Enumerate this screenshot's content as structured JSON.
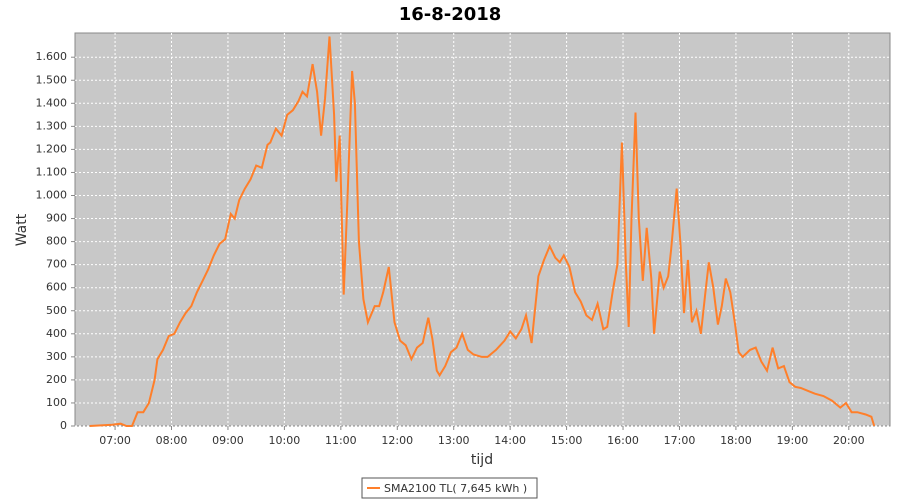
{
  "chart_data": {
    "type": "line",
    "title": "16-8-2018",
    "x_label": "tijd",
    "y_label": "Watt",
    "x": [
      6.55,
      6.95,
      7.1,
      7.2,
      7.3,
      7.4,
      7.5,
      7.6,
      7.7,
      7.75,
      7.85,
      7.95,
      8.05,
      8.15,
      8.25,
      8.35,
      8.45,
      8.55,
      8.65,
      8.75,
      8.85,
      8.95,
      9.05,
      9.12,
      9.2,
      9.3,
      9.4,
      9.5,
      9.6,
      9.7,
      9.75,
      9.85,
      9.95,
      10.05,
      10.15,
      10.25,
      10.32,
      10.4,
      10.5,
      10.58,
      10.65,
      10.72,
      10.8,
      10.88,
      10.92,
      10.98,
      11.05,
      11.12,
      11.2,
      11.25,
      11.32,
      11.4,
      11.48,
      11.6,
      11.68,
      11.75,
      11.85,
      11.95,
      12.05,
      12.15,
      12.25,
      12.35,
      12.45,
      12.55,
      12.62,
      12.7,
      12.75,
      12.85,
      12.95,
      13.05,
      13.15,
      13.25,
      13.35,
      13.5,
      13.6,
      13.75,
      13.9,
      14.0,
      14.1,
      14.2,
      14.28,
      14.38,
      14.5,
      14.6,
      14.7,
      14.8,
      14.88,
      14.95,
      15.05,
      15.15,
      15.25,
      15.35,
      15.45,
      15.55,
      15.65,
      15.72,
      15.82,
      15.9,
      15.98,
      16.05,
      16.1,
      16.15,
      16.22,
      16.28,
      16.35,
      16.42,
      16.5,
      16.55,
      16.65,
      16.72,
      16.8,
      16.85,
      16.95,
      17.02,
      17.08,
      17.15,
      17.22,
      17.3,
      17.38,
      17.45,
      17.52,
      17.6,
      17.68,
      17.75,
      17.82,
      17.9,
      17.98,
      18.05,
      18.12,
      18.25,
      18.35,
      18.45,
      18.55,
      18.65,
      18.75,
      18.85,
      18.95,
      19.05,
      19.15,
      19.3,
      19.4,
      19.55,
      19.7,
      19.85,
      19.95,
      20.05,
      20.15,
      20.3,
      20.4,
      20.45
    ],
    "series": [
      {
        "name": "SMA2100 TL( 7,645 kWh )",
        "color": "#ff7f2a",
        "values": [
          0,
          5,
          10,
          0,
          0,
          60,
          60,
          100,
          200,
          290,
          330,
          390,
          400,
          450,
          490,
          520,
          580,
          630,
          680,
          740,
          790,
          810,
          920,
          900,
          980,
          1030,
          1070,
          1130,
          1120,
          1220,
          1230,
          1290,
          1260,
          1350,
          1370,
          1410,
          1450,
          1430,
          1570,
          1450,
          1260,
          1420,
          1690,
          1350,
          1060,
          1260,
          570,
          1000,
          1540,
          1400,
          800,
          550,
          450,
          520,
          520,
          580,
          690,
          450,
          370,
          350,
          290,
          340,
          360,
          470,
          380,
          240,
          220,
          260,
          320,
          340,
          400,
          330,
          310,
          300,
          300,
          330,
          370,
          410,
          380,
          420,
          480,
          360,
          650,
          720,
          780,
          730,
          710,
          740,
          690,
          580,
          540,
          480,
          460,
          530,
          420,
          430,
          590,
          700,
          1230,
          700,
          430,
          900,
          1360,
          900,
          630,
          860,
          640,
          400,
          670,
          600,
          650,
          760,
          1030,
          780,
          490,
          720,
          450,
          500,
          400,
          560,
          710,
          600,
          440,
          520,
          640,
          580,
          450,
          320,
          300,
          330,
          340,
          280,
          240,
          340,
          250,
          260,
          190,
          170,
          165,
          150,
          140,
          130,
          110,
          80,
          100,
          60,
          60,
          50,
          40,
          0
        ]
      }
    ],
    "xlim": [
      6.29,
      20.73
    ],
    "xticks": [
      {
        "value": 7,
        "label": "07:00"
      },
      {
        "value": 8,
        "label": "08:00"
      },
      {
        "value": 9,
        "label": "09:00"
      },
      {
        "value": 10,
        "label": "10:00"
      },
      {
        "value": 11,
        "label": "11:00"
      },
      {
        "value": 12,
        "label": "12:00"
      },
      {
        "value": 13,
        "label": "13:00"
      },
      {
        "value": 14,
        "label": "14:00"
      },
      {
        "value": 15,
        "label": "15:00"
      },
      {
        "value": 16,
        "label": "16:00"
      },
      {
        "value": 17,
        "label": "17:00"
      },
      {
        "value": 18,
        "label": "18:00"
      },
      {
        "value": 19,
        "label": "19:00"
      },
      {
        "value": 20,
        "label": "20:00"
      }
    ],
    "ylim": [
      0,
      1705
    ],
    "yticks": [
      0,
      100,
      200,
      300,
      400,
      500,
      600,
      700,
      800,
      900,
      {
        "value": 1000,
        "label": "1.000"
      },
      {
        "value": 1100,
        "label": "1.100"
      },
      {
        "value": 1200,
        "label": "1.200"
      },
      {
        "value": 1300,
        "label": "1.300"
      },
      {
        "value": 1400,
        "label": "1.400"
      },
      {
        "value": 1500,
        "label": "1.500"
      },
      {
        "value": 1600,
        "label": "1.600"
      }
    ],
    "grid": true
  }
}
